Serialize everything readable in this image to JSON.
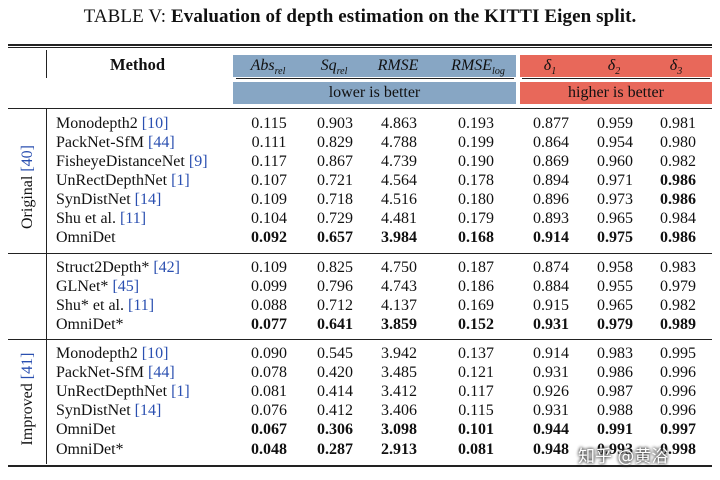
{
  "caption": {
    "prefix": "TABLE V: ",
    "title": "Evaluation of depth estimation on the KITTI Eigen split."
  },
  "header": {
    "method": "Method",
    "metrics": {
      "abs": "Abs",
      "abs_sub": "rel",
      "sq": "Sq",
      "sq_sub": "rel",
      "rmse": "RMSE",
      "rmselog": "RMSE",
      "rmselog_sub": "log",
      "d1": "δ",
      "d1_sub": "1",
      "d2": "δ",
      "d2_sub": "2",
      "d3": "δ",
      "d3_sub": "3"
    },
    "lower_label": "lower is better",
    "higher_label": "higher is better",
    "colors": {
      "lower": "#87A6C4",
      "higher": "#E8685A",
      "ref_link": "#2a4fb0"
    }
  },
  "groups": {
    "original": {
      "label": "Original",
      "ref": "[40]"
    },
    "improved": {
      "label": "Improved",
      "ref": "[41]"
    }
  },
  "rows": [
    {
      "name": "Monodepth2",
      "ref": " [10]",
      "vals": [
        "0.115",
        "0.903",
        "4.863",
        "0.193",
        "0.877",
        "0.959",
        "0.981"
      ],
      "bold": []
    },
    {
      "name": "PackNet-SfM",
      "ref": " [44]",
      "vals": [
        "0.111",
        "0.829",
        "4.788",
        "0.199",
        "0.864",
        "0.954",
        "0.980"
      ],
      "bold": []
    },
    {
      "name": "FisheyeDistanceNet",
      "ref": " [9]",
      "vals": [
        "0.117",
        "0.867",
        "4.739",
        "0.190",
        "0.869",
        "0.960",
        "0.982"
      ],
      "bold": []
    },
    {
      "name": "UnRectDepthNet",
      "ref": " [1]",
      "vals": [
        "0.107",
        "0.721",
        "4.564",
        "0.178",
        "0.894",
        "0.971",
        "0.986"
      ],
      "bold": [
        6
      ]
    },
    {
      "name": "SynDistNet",
      "ref": " [14]",
      "vals": [
        "0.109",
        "0.718",
        "4.516",
        "0.180",
        "0.896",
        "0.973",
        "0.986"
      ],
      "bold": [
        6
      ]
    },
    {
      "name": "Shu et al.",
      "ref": " [11]",
      "vals": [
        "0.104",
        "0.729",
        "4.481",
        "0.179",
        "0.893",
        "0.965",
        "0.984"
      ],
      "bold": []
    },
    {
      "name": "OmniDet",
      "ref": "",
      "vals": [
        "0.092",
        "0.657",
        "3.984",
        "0.168",
        "0.914",
        "0.975",
        "0.986"
      ],
      "bold": [
        0,
        1,
        2,
        3,
        4,
        5,
        6
      ]
    },
    {
      "name": "Struct2Depth*",
      "ref": " [42]",
      "vals": [
        "0.109",
        "0.825",
        "4.750",
        "0.187",
        "0.874",
        "0.958",
        "0.983"
      ],
      "bold": []
    },
    {
      "name": "GLNet*",
      "ref": " [45]",
      "vals": [
        "0.099",
        "0.796",
        "4.743",
        "0.186",
        "0.884",
        "0.955",
        "0.979"
      ],
      "bold": []
    },
    {
      "name": "Shu* et al.",
      "ref": " [11]",
      "vals": [
        "0.088",
        "0.712",
        "4.137",
        "0.169",
        "0.915",
        "0.965",
        "0.982"
      ],
      "bold": []
    },
    {
      "name": "OmniDet*",
      "ref": "",
      "vals": [
        "0.077",
        "0.641",
        "3.859",
        "0.152",
        "0.931",
        "0.979",
        "0.989"
      ],
      "bold": [
        0,
        1,
        2,
        3,
        4,
        5,
        6
      ]
    },
    {
      "name": "Monodepth2",
      "ref": " [10]",
      "vals": [
        "0.090",
        "0.545",
        "3.942",
        "0.137",
        "0.914",
        "0.983",
        "0.995"
      ],
      "bold": []
    },
    {
      "name": "PackNet-SfM",
      "ref": " [44]",
      "vals": [
        "0.078",
        "0.420",
        "3.485",
        "0.121",
        "0.931",
        "0.986",
        "0.996"
      ],
      "bold": []
    },
    {
      "name": "UnRectDepthNet",
      "ref": " [1]",
      "vals": [
        "0.081",
        "0.414",
        "3.412",
        "0.117",
        "0.926",
        "0.987",
        "0.996"
      ],
      "bold": []
    },
    {
      "name": "SynDistNet",
      "ref": " [14]",
      "vals": [
        "0.076",
        "0.412",
        "3.406",
        "0.115",
        "0.931",
        "0.988",
        "0.996"
      ],
      "bold": []
    },
    {
      "name": "OmniDet",
      "ref": "",
      "vals": [
        "0.067",
        "0.306",
        "3.098",
        "0.101",
        "0.944",
        "0.991",
        "0.997"
      ],
      "bold": [
        0,
        1,
        2,
        3,
        4,
        5,
        6
      ]
    },
    {
      "name": "OmniDet*",
      "ref": "",
      "vals": [
        "0.048",
        "0.287",
        "2.913",
        "0.081",
        "0.948",
        "0.993",
        "0.998"
      ],
      "bold": [
        0,
        1,
        2,
        3,
        4,
        5,
        6
      ]
    }
  ],
  "watermark": "知乎 @黄浴"
}
